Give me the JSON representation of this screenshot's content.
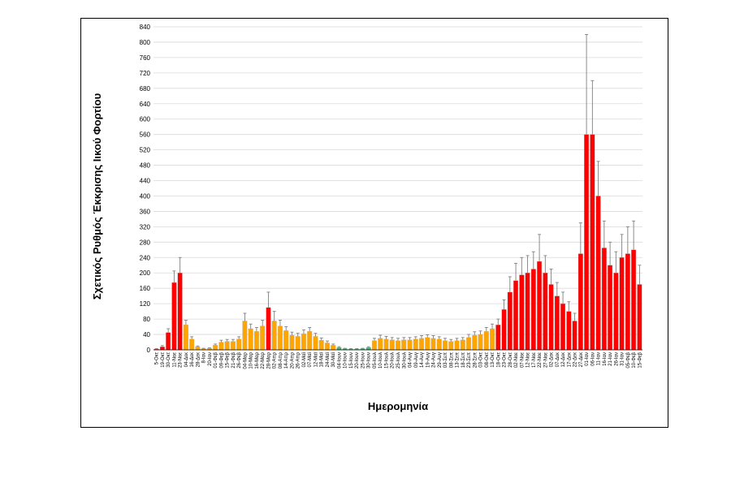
{
  "chart_data": {
    "type": "bar",
    "title": "",
    "xlabel": "Ημερομηνία",
    "ylabel": "Σχετικός Ρυθμός Έκκρισης Ιικού Φορτίου",
    "ylim": [
      0,
      840
    ],
    "yticks": [
      0,
      40,
      80,
      120,
      160,
      200,
      240,
      280,
      320,
      360,
      400,
      440,
      480,
      520,
      560,
      600,
      640,
      680,
      720,
      760,
      800,
      840
    ],
    "grid": true,
    "legend": "none",
    "error_bars": true,
    "colors": {
      "red": "#ff0000",
      "orange": "#ffa500",
      "green": "#3cb371",
      "error": "#808080"
    },
    "categories": [
      "5-Οκτ",
      "19-Οκτ",
      "30-Οκτ",
      "11-Νοε",
      "23-Νοε",
      "04-Δεκ",
      "16-Δεκ",
      "28-Δεκ",
      "8-Ιαν",
      "20-Ιαν",
      "01-Φεβ",
      "09-Φεβ",
      "15-Φεβ",
      "21-Φεβ",
      "26-Φεβ",
      "04-Μαρ",
      "10-Μαρ",
      "16-Μαρ",
      "22-Μαρ",
      "28-Μαρ",
      "02-Απρ",
      "08-Απρ",
      "14-Απρ",
      "20-Απρ",
      "26-Απρ",
      "02-Μαϊ",
      "07-Μαϊ",
      "12-Μαϊ",
      "18-Μαϊ",
      "24-Μαϊ",
      "30-Μαϊ",
      "04-Ιουν",
      "10-Ιουν",
      "15-Ιουν",
      "20-Ιουν",
      "25-Ιουν",
      "30-Ιουν",
      "05-Ιουλ",
      "10-Ιουλ",
      "15-Ιουλ",
      "20-Ιουλ",
      "25-Ιουλ",
      "30-Ιουλ",
      "04-Αυγ",
      "09-Αυγ",
      "14-Αυγ",
      "19-Αυγ",
      "24-Αυγ",
      "29-Αυγ",
      "03-Σεπ",
      "08-Σεπ",
      "13-Σεπ",
      "18-Σεπ",
      "23-Σεπ",
      "28-Σεπ",
      "03-Οκτ",
      "08-Οκτ",
      "13-Οκτ",
      "18-Οκτ",
      "23-Οκτ",
      "28-Οκτ",
      "02-Νοε",
      "07-Νοε",
      "12-Νοε",
      "17-Νοε",
      "22-Νοε",
      "27-Νοε",
      "02-Δεκ",
      "07-Δεκ",
      "12-Δεκ",
      "17-Δεκ",
      "22-Δεκ",
      "27-Δεκ",
      "01-Ιαν",
      "06-Ιαν",
      "11-Ιαν",
      "16-Ιαν",
      "21-Ιαν",
      "26-Ιαν",
      "31-Ιαν",
      "05-Φεβ",
      "10-Φεβ",
      "15-Φεβ"
    ],
    "values": [
      2,
      8,
      45,
      175,
      200,
      65,
      28,
      8,
      3,
      4,
      12,
      20,
      22,
      22,
      28,
      75,
      55,
      48,
      62,
      110,
      75,
      62,
      50,
      38,
      35,
      42,
      48,
      35,
      25,
      18,
      12,
      6,
      3,
      2,
      2,
      3,
      6,
      24,
      30,
      28,
      26,
      24,
      26,
      26,
      28,
      30,
      32,
      30,
      28,
      24,
      22,
      24,
      26,
      32,
      38,
      40,
      48,
      55,
      65,
      105,
      150,
      180,
      195,
      200,
      210,
      230,
      200,
      170,
      140,
      120,
      100,
      75,
      250,
      560,
      560,
      400,
      265,
      220,
      200,
      240,
      250,
      260,
      170
    ],
    "errors": [
      1,
      3,
      10,
      30,
      40,
      12,
      6,
      2,
      1,
      1,
      3,
      5,
      5,
      5,
      6,
      20,
      12,
      10,
      15,
      40,
      25,
      15,
      10,
      8,
      8,
      10,
      10,
      8,
      6,
      5,
      3,
      2,
      1,
      1,
      1,
      1,
      2,
      6,
      8,
      7,
      6,
      6,
      6,
      6,
      6,
      7,
      7,
      7,
      6,
      6,
      5,
      6,
      6,
      8,
      9,
      9,
      10,
      12,
      15,
      25,
      40,
      45,
      45,
      45,
      45,
      70,
      45,
      40,
      35,
      30,
      25,
      20,
      80,
      260,
      140,
      90,
      70,
      60,
      55,
      60,
      70,
      75,
      50
    ],
    "colors_per_bar": [
      "red",
      "red",
      "red",
      "red",
      "red",
      "orange",
      "orange",
      "orange",
      "orange",
      "orange",
      "orange",
      "orange",
      "orange",
      "orange",
      "orange",
      "orange",
      "orange",
      "orange",
      "orange",
      "red",
      "orange",
      "orange",
      "orange",
      "orange",
      "orange",
      "orange",
      "orange",
      "orange",
      "orange",
      "orange",
      "orange",
      "green",
      "green",
      "green",
      "green",
      "green",
      "green",
      "orange",
      "orange",
      "orange",
      "orange",
      "orange",
      "orange",
      "orange",
      "orange",
      "orange",
      "orange",
      "orange",
      "orange",
      "orange",
      "orange",
      "orange",
      "orange",
      "orange",
      "orange",
      "orange",
      "orange",
      "orange",
      "red",
      "red",
      "red",
      "red",
      "red",
      "red",
      "red",
      "red",
      "red",
      "red",
      "red",
      "red",
      "red",
      "red",
      "red",
      "red",
      "red",
      "red",
      "red",
      "red",
      "red",
      "red",
      "red",
      "red",
      "red"
    ]
  }
}
